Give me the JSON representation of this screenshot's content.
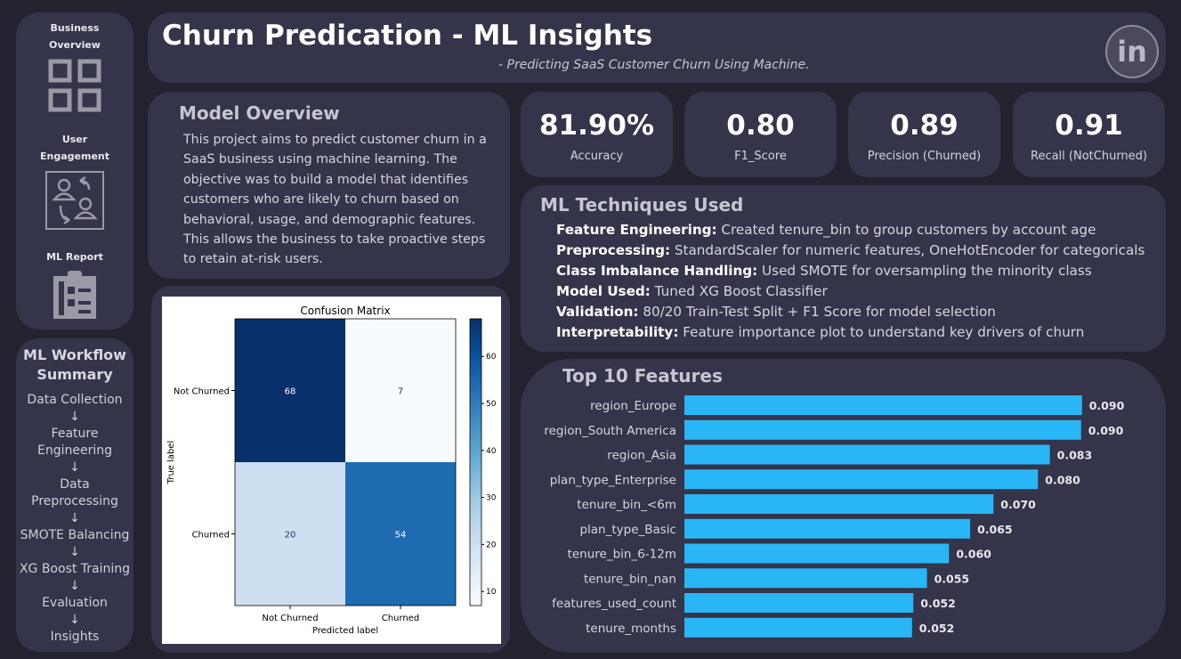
{
  "nav": {
    "items": [
      {
        "label_line1": "Business",
        "label_line2": "Overview",
        "icon": "grid-icon"
      },
      {
        "label_line1": "User",
        "label_line2": "Engagement",
        "icon": "users-swap-icon"
      },
      {
        "label_line1": "ML Report",
        "label_line2": "",
        "icon": "clipboard-list-icon"
      }
    ]
  },
  "workflow": {
    "title_line1": "ML Workflow",
    "title_line2": "Summary",
    "steps": [
      "Data Collection",
      "↓",
      "Feature",
      "Engineering",
      "↓",
      "Data",
      "Preprocessing",
      "↓",
      "SMOTE Balancing",
      "↓",
      "XG Boost Training",
      "↓",
      "Evaluation",
      "↓",
      "Insights"
    ]
  },
  "header": {
    "title": "Churn Predication - ML Insights",
    "subtitle": "- Predicting SaaS Customer Churn Using Machine.",
    "linkedin_text": "in"
  },
  "overview": {
    "title": "Model Overview",
    "text": "This project aims to predict customer churn in a SaaS business using machine learning. The objective was to build a model that identifies customers who are likely to churn based on behavioral, usage, and demographic features. This allows the business to take proactive steps to retain at-risk users."
  },
  "kpis": [
    {
      "value": "81.90%",
      "label": "Accuracy"
    },
    {
      "value": "0.80",
      "label": "F1_Score"
    },
    {
      "value": "0.89",
      "label": "Precision (Churned)"
    },
    {
      "value": "0.91",
      "label": "Recall (NotChurned)"
    }
  ],
  "techniques": {
    "title": "ML Techniques Used",
    "items": [
      {
        "name": "Feature Engineering:",
        "desc": " Created tenure_bin to group customers by account age"
      },
      {
        "name": "Preprocessing:",
        "desc": " StandardScaler for numeric features, OneHotEncoder for categoricals"
      },
      {
        "name": "Class Imbalance Handling:",
        "desc": " Used SMOTE for oversampling the minority class"
      },
      {
        "name": "Model Used:",
        "desc": " Tuned XG Boost Classifier"
      },
      {
        "name": "Validation:",
        "desc": " 80/20 Train-Test Split + F1 Score for model selection"
      },
      {
        "name": "Interpretability:",
        "desc": " Feature importance plot to understand key drivers of churn"
      }
    ]
  },
  "colors": {
    "bar": "#29b6f6",
    "cm_dark": "#08306b",
    "cm_mid": "#2171b5",
    "cm_light": "#c6dbef",
    "cm_white": "#f7fbff"
  },
  "chart_data": [
    {
      "type": "heatmap",
      "title": "Confusion Matrix",
      "xlabel": "Predicted label",
      "ylabel": "True label",
      "x_categories": [
        "Not Churned",
        "Churned"
      ],
      "y_categories": [
        "Not Churned",
        "Churned"
      ],
      "values": [
        [
          68,
          7
        ],
        [
          20,
          54
        ]
      ],
      "colorbar_ticks": [
        10,
        20,
        30,
        40,
        50,
        60
      ],
      "colorbar_range": [
        7,
        68
      ],
      "colormap": "Blues"
    },
    {
      "type": "bar",
      "orientation": "horizontal",
      "title": "Top 10 Features",
      "categories": [
        "region_Europe",
        "region_South America",
        "region_Asia",
        "plan_type_Enterprise",
        "tenure_bin_<6m",
        "plan_type_Basic",
        "tenure_bin_6-12m",
        "tenure_bin_nan",
        "features_used_count",
        "tenure_months"
      ],
      "values": [
        0.09,
        0.09,
        0.083,
        0.08,
        0.07,
        0.065,
        0.06,
        0.055,
        0.052,
        0.052
      ],
      "value_labels": [
        "0.090",
        "0.090",
        "0.083",
        "0.080",
        "0.070",
        "0.065",
        "0.060",
        "0.055",
        "0.052",
        "0.052"
      ],
      "precise_values": [
        0.0903,
        0.0901,
        0.083,
        0.0803,
        0.0702,
        0.0649,
        0.0601,
        0.0551,
        0.052,
        0.0517
      ],
      "xlim": [
        0,
        0.095
      ]
    }
  ]
}
